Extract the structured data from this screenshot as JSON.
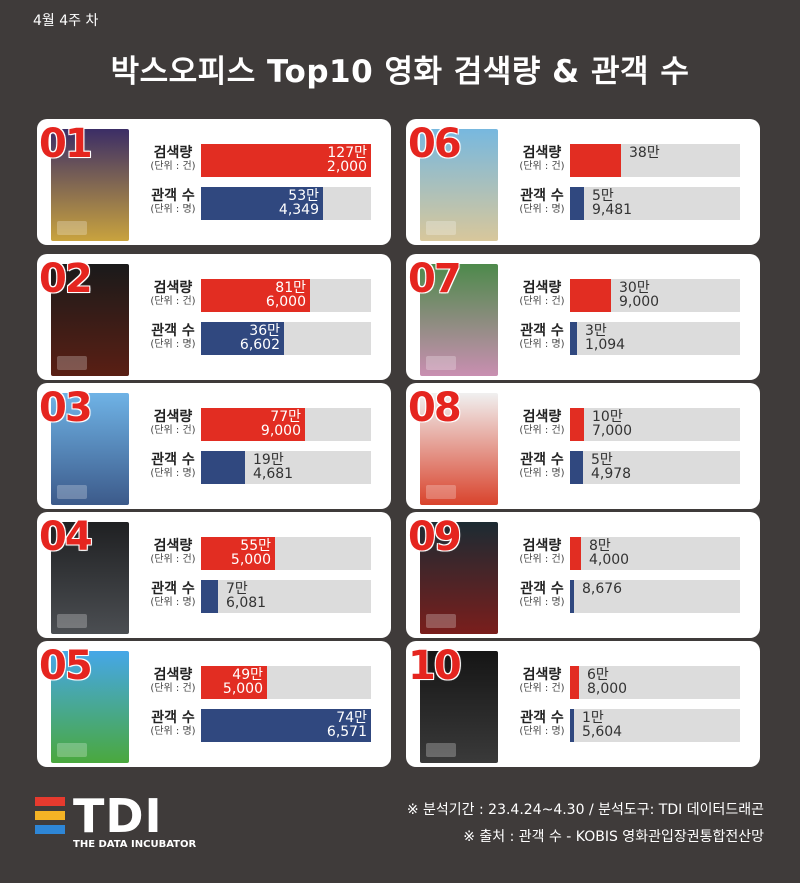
{
  "header": {
    "week": "4월 4주 차",
    "title": "박스오피스 Top10 영화 검색량 & 관객 수"
  },
  "labels": {
    "search": "검색량",
    "search_unit": "(단위 : 건)",
    "audience": "관객 수",
    "audience_unit": "(단위 : 명)"
  },
  "colors": {
    "search_bar": "#e22d22",
    "audience_bar": "#30487f",
    "rank": "#e5251f",
    "background": "#3f3b3a"
  },
  "chart_data": {
    "type": "bar",
    "title": "박스오피스 Top10 영화 검색량 & 관객 수",
    "categories": [
      "01",
      "02",
      "03",
      "04",
      "05",
      "06",
      "07",
      "08",
      "09",
      "10"
    ],
    "series": [
      {
        "name": "검색량",
        "values": [
          1272000,
          816000,
          779000,
          555000,
          495000,
          382000,
          309000,
          107000,
          84000,
          68000
        ],
        "labels": [
          "127만\n2,000",
          "81만\n6,000",
          "77만\n9,000",
          "55만\n5,000",
          "49만\n5,000",
          "38만",
          "30만\n9,000",
          "10만\n7,000",
          "8만\n4,000",
          "6만\n8,000"
        ]
      },
      {
        "name": "관객 수",
        "values": [
          534349,
          366602,
          194681,
          76081,
          746571,
          59481,
          31094,
          54978,
          8676,
          15604
        ],
        "labels": [
          "53만\n4,349",
          "36만\n6,602",
          "19만\n4,681",
          "7만\n6,081",
          "74만\n6,571",
          "5만\n9,481",
          "3만\n1,094",
          "5만\n4,978",
          "8,676",
          "1만\n5,604"
        ]
      }
    ],
    "search_max": 1272000,
    "audience_max": 746571
  },
  "posters": [
    {
      "name": "poster-01-icon",
      "top": "#3b2d66",
      "bottom": "#c9a33e"
    },
    {
      "name": "poster-02-icon",
      "top": "#1a1a1a",
      "bottom": "#5a1f14"
    },
    {
      "name": "poster-03-icon",
      "top": "#6fb3e6",
      "bottom": "#3c5a8a"
    },
    {
      "name": "poster-04-icon",
      "top": "#1f2022",
      "bottom": "#4b4e52"
    },
    {
      "name": "poster-05-icon",
      "top": "#46a7e8",
      "bottom": "#4aa83d"
    },
    {
      "name": "poster-06-icon",
      "top": "#77b8df",
      "bottom": "#d8c79b"
    },
    {
      "name": "poster-07-icon",
      "top": "#4d8a4b",
      "bottom": "#c98fb1"
    },
    {
      "name": "poster-08-icon",
      "top": "#f0f0f0",
      "bottom": "#d9432c"
    },
    {
      "name": "poster-09-icon",
      "top": "#1c2b33",
      "bottom": "#7a1e1c"
    },
    {
      "name": "poster-10-icon",
      "top": "#151515",
      "bottom": "#3a3a3a"
    }
  ],
  "footer": {
    "logo_text": "TDI",
    "logo_sub": "THE DATA INCUBATOR",
    "logo_colors": [
      "#e63a2e",
      "#f4b325",
      "#2e86d6"
    ],
    "note1": "※ 분석기간 : 23.4.24~4.30 / 분석도구: TDI 데이터드래곤",
    "note2": "※ 출처 : 관객 수 -  KOBIS 영화관입장권통합전산망"
  }
}
